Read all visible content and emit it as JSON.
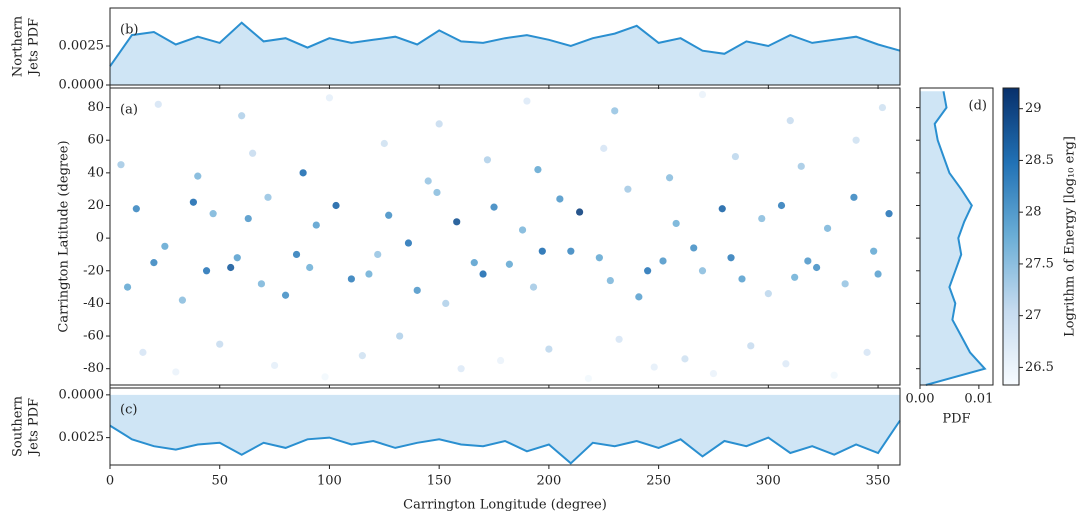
{
  "chart_data": [
    {
      "type": "area",
      "annotation": "(b)",
      "ylabel": [
        "Northern",
        "Jets PDF"
      ],
      "x": [
        0,
        10,
        20,
        30,
        40,
        50,
        60,
        70,
        80,
        90,
        100,
        110,
        120,
        130,
        140,
        150,
        160,
        170,
        180,
        190,
        200,
        210,
        220,
        230,
        240,
        250,
        260,
        270,
        280,
        290,
        300,
        310,
        320,
        330,
        340,
        350,
        360
      ],
      "values": [
        0.0012,
        0.0032,
        0.0034,
        0.0026,
        0.0031,
        0.0027,
        0.004,
        0.0028,
        0.003,
        0.0024,
        0.003,
        0.0027,
        0.0029,
        0.0031,
        0.0026,
        0.0035,
        0.0028,
        0.0027,
        0.003,
        0.0032,
        0.0029,
        0.0025,
        0.003,
        0.0033,
        0.0038,
        0.0027,
        0.003,
        0.0022,
        0.002,
        0.0028,
        0.0025,
        0.0032,
        0.0027,
        0.0029,
        0.0031,
        0.0026,
        0.0022
      ],
      "color": "#2a8fd0",
      "fill": "#cfe5f5",
      "xlim": [
        0,
        360
      ],
      "xticks": [
        0,
        50,
        100,
        150,
        200,
        250,
        300,
        350
      ],
      "ylim": [
        0,
        0.00494
      ],
      "yticks": [
        {
          "value": 0,
          "label": "0.0000"
        },
        {
          "value": 0.0025,
          "label": "0.0025"
        }
      ]
    },
    {
      "type": "scatter",
      "annotation": "(a)",
      "ylabel": "Carrington Latitude (degree)",
      "x": [
        12,
        25,
        38,
        47,
        55,
        63,
        72,
        85,
        94,
        103,
        118,
        127,
        136,
        149,
        158,
        166,
        175,
        188,
        197,
        205,
        214,
        223,
        236,
        245,
        258,
        266,
        279,
        288,
        297,
        306,
        318,
        327,
        339,
        348,
        355,
        8,
        20,
        33,
        44,
        58,
        69,
        80,
        91,
        110,
        122,
        140,
        153,
        170,
        182,
        193,
        210,
        228,
        241,
        252,
        270,
        283,
        300,
        312,
        322,
        335,
        350,
        15,
        30,
        50,
        75,
        98,
        115,
        132,
        160,
        178,
        200,
        218,
        232,
        248,
        262,
        275,
        292,
        308,
        330,
        345,
        5,
        40,
        65,
        88,
        125,
        145,
        172,
        195,
        225,
        255,
        285,
        315,
        340,
        22,
        60,
        100,
        150,
        190,
        230,
        270,
        310,
        352
      ],
      "y": [
        18,
        -5,
        22,
        15,
        -18,
        12,
        25,
        -10,
        8,
        20,
        -22,
        14,
        -3,
        28,
        10,
        -15,
        19,
        5,
        -8,
        24,
        16,
        -12,
        30,
        -20,
        9,
        -6,
        18,
        -25,
        12,
        20,
        -14,
        6,
        25,
        -8,
        15,
        -30,
        -15,
        -38,
        -20,
        -12,
        -28,
        -35,
        -18,
        -25,
        -10,
        -32,
        -40,
        -22,
        -16,
        -30,
        -8,
        -26,
        -36,
        -14,
        -20,
        -12,
        -34,
        -24,
        -18,
        -28,
        -22,
        -70,
        -82,
        -65,
        -78,
        -85,
        -72,
        -60,
        -80,
        -75,
        -68,
        -86,
        -62,
        -79,
        -74,
        -83,
        -66,
        -77,
        -84,
        -70,
        45,
        38,
        52,
        40,
        58,
        35,
        48,
        42,
        55,
        37,
        50,
        44,
        60,
        82,
        75,
        86,
        70,
        84,
        78,
        88,
        72,
        80
      ],
      "c": [
        28.2,
        27.8,
        28.5,
        27.6,
        28.7,
        28.0,
        27.4,
        28.3,
        27.9,
        28.6,
        27.7,
        28.1,
        28.4,
        27.5,
        28.8,
        27.9,
        28.2,
        27.6,
        28.5,
        28.0,
        29.0,
        27.8,
        27.3,
        28.4,
        27.7,
        28.1,
        28.6,
        27.9,
        27.5,
        28.3,
        28.0,
        27.6,
        28.2,
        27.8,
        28.4,
        27.8,
        28.2,
        27.5,
        28.4,
        27.9,
        27.6,
        28.1,
        27.7,
        28.3,
        27.4,
        28.0,
        27.2,
        28.5,
        27.8,
        27.3,
        28.2,
        27.6,
        27.9,
        28.0,
        27.5,
        28.3,
        27.1,
        27.7,
        28.1,
        27.4,
        27.9,
        26.8,
        26.5,
        27.0,
        26.6,
        26.4,
        26.9,
        27.2,
        26.7,
        26.5,
        27.1,
        26.4,
        26.8,
        26.6,
        26.9,
        26.5,
        27.0,
        26.7,
        26.4,
        26.8,
        27.3,
        27.6,
        27.0,
        28.5,
        26.9,
        27.4,
        27.2,
        27.8,
        26.8,
        27.5,
        27.1,
        27.3,
        26.9,
        26.8,
        27.2,
        26.6,
        27.0,
        26.7,
        27.4,
        26.5,
        27.0,
        26.9
      ],
      "xlim": [
        0,
        360
      ],
      "xticks": [
        0,
        50,
        100,
        150,
        200,
        250,
        300,
        350
      ],
      "ylim": [
        -90,
        92
      ],
      "yticks": [
        -80,
        -60,
        -40,
        -20,
        0,
        20,
        40,
        60,
        80
      ],
      "colorbar": {
        "label": "Logrithm of Energy [log₁₀ erg]",
        "lim": [
          26.33,
          29.2
        ],
        "ticks": [
          26.5,
          27.0,
          27.5,
          28.0,
          28.5,
          29.0
        ],
        "colormap": [
          "#f7fbff",
          "#c6dbef",
          "#6baed6",
          "#2171b5",
          "#08306b"
        ]
      }
    },
    {
      "type": "area",
      "annotation": "(c)",
      "ylabel": [
        "Southern",
        "Jets PDF"
      ],
      "xlabel": "Carrington Longitude (degree)",
      "inverted": true,
      "x": [
        0,
        10,
        20,
        30,
        40,
        50,
        60,
        70,
        80,
        90,
        100,
        110,
        120,
        130,
        140,
        150,
        160,
        170,
        180,
        190,
        200,
        210,
        220,
        230,
        240,
        250,
        260,
        270,
        280,
        290,
        300,
        310,
        320,
        330,
        340,
        350,
        360
      ],
      "values": [
        0.0018,
        0.0026,
        0.003,
        0.0032,
        0.0029,
        0.0028,
        0.0035,
        0.0028,
        0.0031,
        0.0026,
        0.0025,
        0.0029,
        0.0027,
        0.0031,
        0.0028,
        0.0026,
        0.0029,
        0.003,
        0.0027,
        0.0033,
        0.0029,
        0.004,
        0.0028,
        0.003,
        0.0027,
        0.0031,
        0.0026,
        0.0036,
        0.0027,
        0.003,
        0.0025,
        0.0034,
        0.003,
        0.0035,
        0.0029,
        0.0034,
        0.0015
      ],
      "color": "#2a8fd0",
      "fill": "#cfe5f5",
      "xlim": [
        0,
        360
      ],
      "xticks": [
        0,
        50,
        100,
        150,
        200,
        250,
        300,
        350
      ],
      "ylim": [
        -0.0004,
        0.0041
      ],
      "yticks": [
        {
          "value": 0,
          "label": "0.0000"
        },
        {
          "value": 0.0025,
          "label": "0.0025"
        }
      ]
    },
    {
      "type": "hArea",
      "annotation": "(d)",
      "xlabel": "PDF",
      "y": [
        -90,
        -80,
        -70,
        -60,
        -50,
        -40,
        -30,
        -20,
        -10,
        0,
        10,
        20,
        30,
        40,
        50,
        60,
        70,
        80,
        90
      ],
      "values": [
        0.001,
        0.011,
        0.0085,
        0.007,
        0.0055,
        0.006,
        0.005,
        0.006,
        0.007,
        0.0065,
        0.0075,
        0.0088,
        0.007,
        0.005,
        0.004,
        0.003,
        0.0025,
        0.0045,
        0.004
      ],
      "color": "#2a8fd0",
      "fill": "#cfe5f5",
      "xlim": [
        0,
        0.0124
      ],
      "xticks": [
        {
          "value": 0,
          "label": "0.00"
        },
        {
          "value": 0.01,
          "label": "0.01"
        }
      ],
      "ylim": [
        -90,
        92
      ],
      "yticks": [
        -80,
        -60,
        -40,
        -20,
        0,
        20,
        40,
        60,
        80
      ]
    }
  ]
}
